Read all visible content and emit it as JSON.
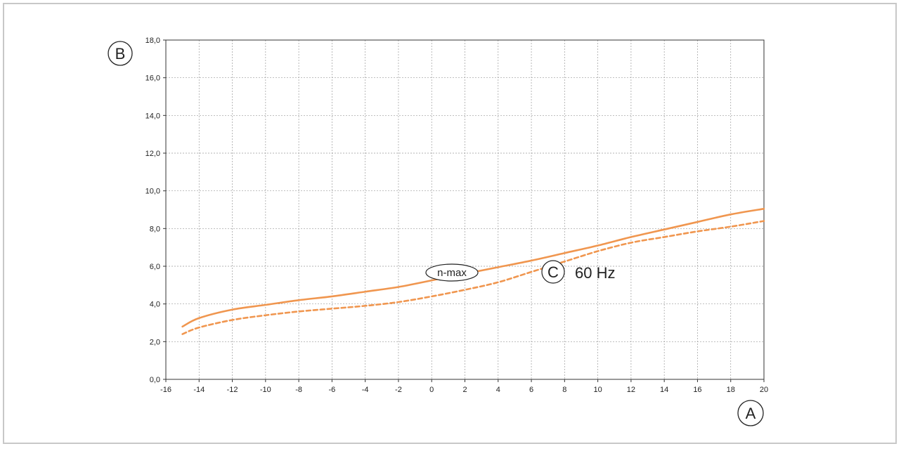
{
  "chart_data": {
    "type": "line",
    "xlim": [
      -16,
      20
    ],
    "ylim": [
      0,
      18
    ],
    "x_ticks": [
      -16,
      -14,
      -12,
      -10,
      -8,
      -6,
      -4,
      -2,
      0,
      2,
      4,
      6,
      8,
      10,
      12,
      14,
      16,
      18,
      20
    ],
    "y_ticks": [
      "0,0",
      "2,0",
      "4,0",
      "6,0",
      "8,0",
      "10,0",
      "12,0",
      "14,0",
      "16,0",
      "18,0"
    ],
    "grid": true,
    "x_axis_badge": "A",
    "y_axis_badge": "B",
    "line_color": "#f0964f",
    "series": [
      {
        "label": "n-max",
        "style": "solid",
        "x": [
          -15,
          -14,
          -12,
          -10,
          -8,
          -6,
          -4,
          -2,
          0,
          2,
          4,
          6,
          8,
          10,
          12,
          14,
          16,
          18,
          20
        ],
        "y": [
          2.8,
          3.25,
          3.7,
          3.95,
          4.2,
          4.4,
          4.65,
          4.9,
          5.25,
          5.6,
          5.95,
          6.3,
          6.7,
          7.1,
          7.55,
          7.95,
          8.35,
          8.75,
          9.05
        ]
      },
      {
        "style": "dashed",
        "x": [
          -15,
          -14,
          -12,
          -10,
          -8,
          -6,
          -4,
          -2,
          0,
          2,
          4,
          6,
          8,
          10,
          12,
          14,
          16,
          18,
          20
        ],
        "y": [
          2.4,
          2.75,
          3.15,
          3.4,
          3.6,
          3.75,
          3.9,
          4.1,
          4.4,
          4.75,
          5.15,
          5.7,
          6.25,
          6.8,
          7.25,
          7.55,
          7.85,
          8.1,
          8.4
        ]
      }
    ],
    "annotation": {
      "badge": "C",
      "text": "60 Hz"
    }
  }
}
